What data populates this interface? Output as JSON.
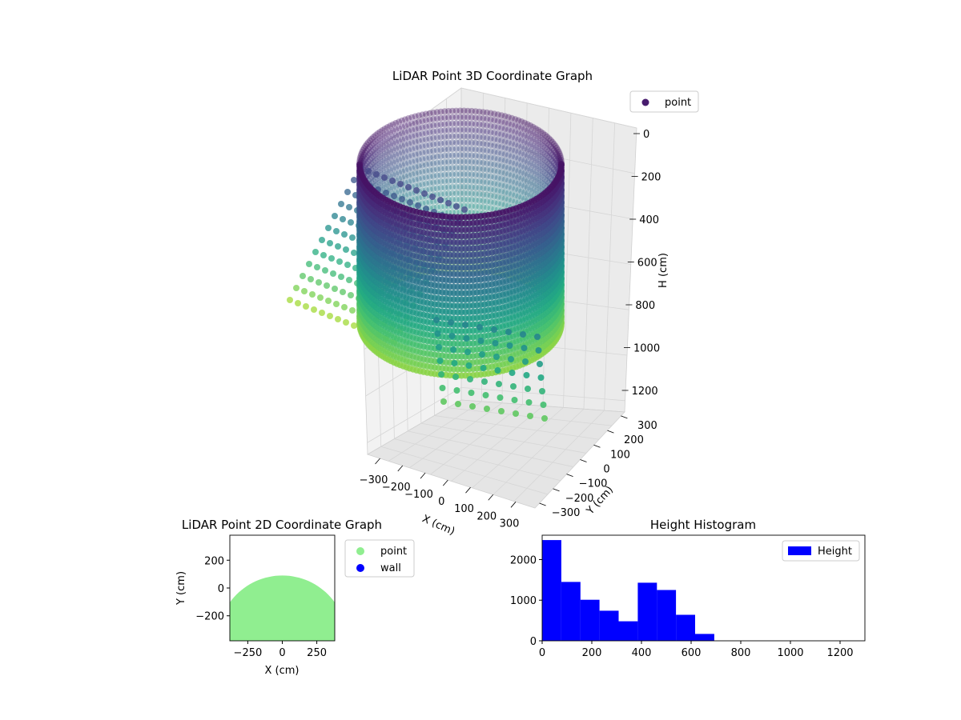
{
  "chart_data": [
    {
      "type": "scatter",
      "projection": "3d",
      "title": "LiDAR Point 3D Coordinate Graph",
      "xlabel": "X (cm)",
      "ylabel": "Y (cm)",
      "zlabel": "H (cm)",
      "xticks": [
        "−300",
        "−200",
        "−100",
        "0",
        "100",
        "200",
        "300"
      ],
      "yticks": [
        "−300",
        "−200",
        "−100",
        "0",
        "100",
        "200",
        "300"
      ],
      "zticks": [
        "0",
        "200",
        "400",
        "600",
        "800",
        "1000",
        "1200"
      ],
      "zlim": [
        0,
        1250
      ],
      "z_inverted": true,
      "colormap": "viridis",
      "legend": {
        "entries": [
          "point"
        ],
        "location": "upper-right",
        "marker_color": "#481c6e"
      },
      "description_series": "approx. 370 cm radius vertical cylinder wall of points with hanging strands below",
      "x": [
        0
      ],
      "y": [
        0
      ],
      "z": [
        0
      ]
    },
    {
      "type": "scatter",
      "title": "LiDAR Point 2D Coordinate Graph",
      "xlabel": "X (cm)",
      "ylabel": "Y (cm)",
      "xlim": [
        -380,
        380
      ],
      "ylim": [
        -380,
        380
      ],
      "xticks": [
        -250,
        0,
        250
      ],
      "yticks": [
        -200,
        0,
        200
      ],
      "series": [
        {
          "name": "point",
          "color": "#90ee90"
        },
        {
          "name": "wall",
          "color": "#0000ff"
        }
      ],
      "filled_region": {
        "series": "point",
        "shape": "half-disk",
        "center": [
          0,
          -380
        ],
        "radius": 470,
        "y_max": 90
      },
      "legend": {
        "location": "outside-upper-right"
      }
    },
    {
      "type": "bar",
      "subtype": "histogram",
      "title": "Height Histogram",
      "series": [
        {
          "name": "Height",
          "color": "#0000ff"
        }
      ],
      "bin_edges": [
        0,
        77,
        154,
        231,
        308,
        385,
        462,
        539,
        616,
        693
      ],
      "values": [
        2480,
        1450,
        1010,
        740,
        480,
        1430,
        1250,
        640,
        170
      ],
      "xlim": [
        0,
        1300
      ],
      "ylim": [
        0,
        2600
      ],
      "xticks": [
        0,
        200,
        400,
        600,
        800,
        1000,
        1200
      ],
      "yticks": [
        0,
        1000,
        2000
      ],
      "legend": {
        "location": "upper-right"
      }
    }
  ]
}
